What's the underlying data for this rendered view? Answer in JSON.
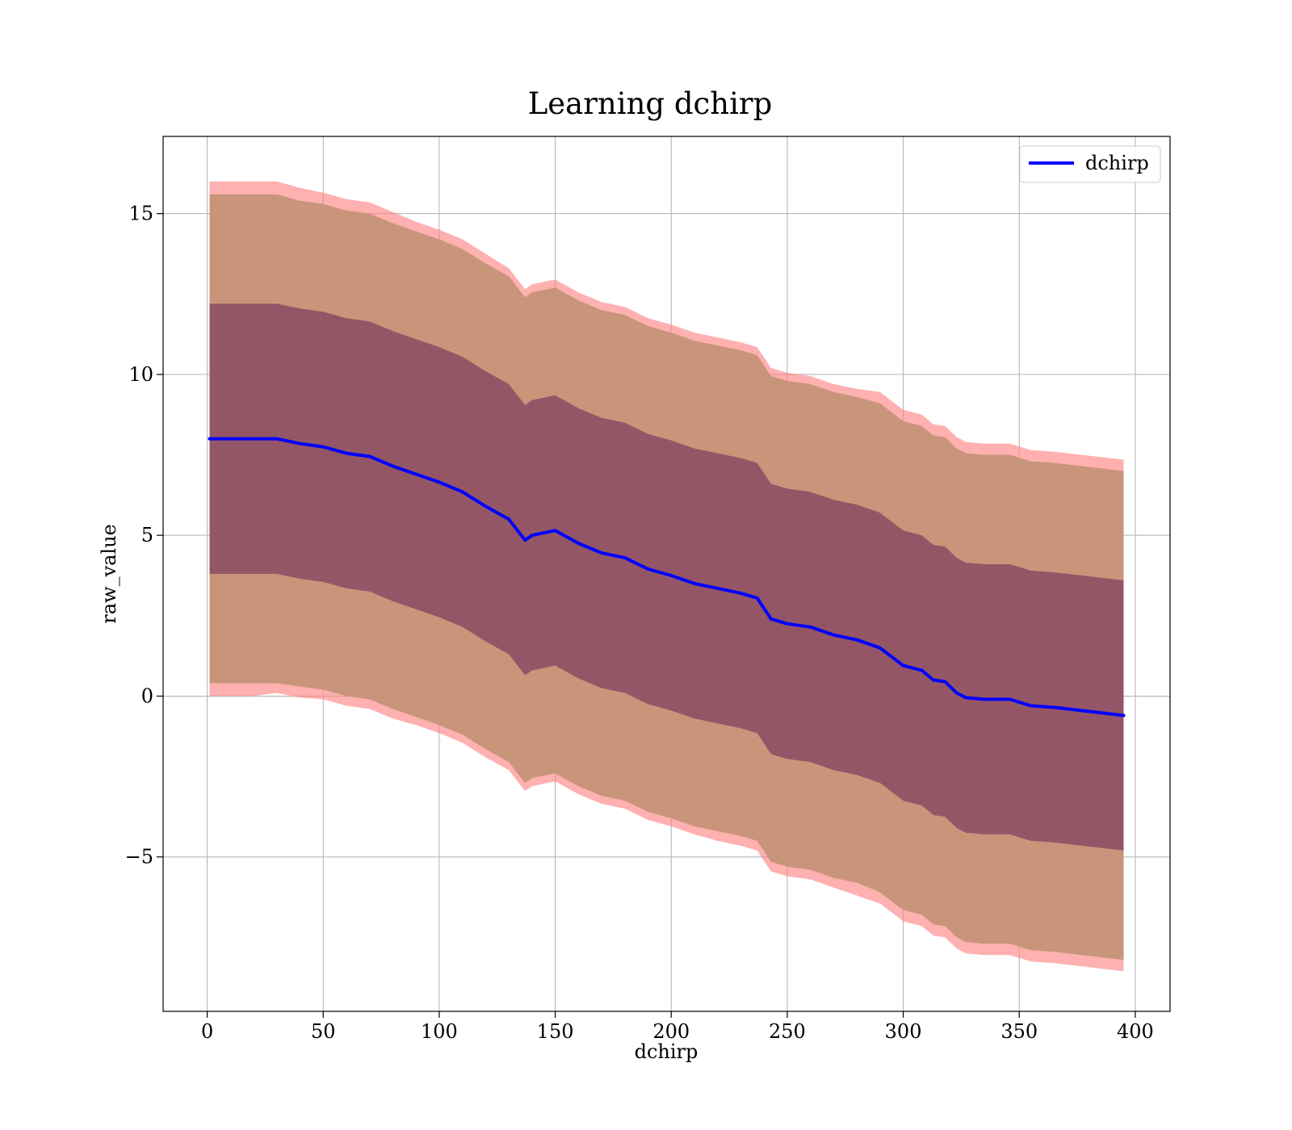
{
  "chart_data": {
    "type": "line",
    "title": "Learning dchirp",
    "xlabel": "dchirp",
    "ylabel": "raw_value",
    "xlim": [
      -19,
      415
    ],
    "ylim": [
      -9.8,
      17.4
    ],
    "grid": true,
    "legend_position": "top-right",
    "x_ticks": [
      0,
      50,
      100,
      150,
      200,
      250,
      300,
      350,
      400
    ],
    "x_tick_labels": [
      "0",
      "50",
      "100",
      "150",
      "200",
      "250",
      "300",
      "350",
      "400"
    ],
    "y_ticks": [
      -5,
      0,
      5,
      10,
      15
    ],
    "y_tick_labels": [
      "−5",
      "0",
      "5",
      "10",
      "15"
    ],
    "colors": {
      "line": "#0000ff",
      "outer_band": "#ff7f7f",
      "inner_band": "#7f3f5f",
      "grid": "#b0b0b0",
      "axes": "#000000"
    },
    "series": [
      {
        "name": "dchirp",
        "x": [
          1,
          10,
          20,
          30,
          40,
          50,
          60,
          70,
          80,
          90,
          100,
          110,
          120,
          130,
          137,
          140,
          150,
          160,
          170,
          180,
          190,
          200,
          210,
          220,
          230,
          237,
          243,
          250,
          260,
          270,
          280,
          290,
          300,
          308,
          313,
          318,
          323,
          327,
          335,
          346,
          355,
          365,
          395
        ],
        "y": [
          8.0,
          8.0,
          8.0,
          8.0,
          7.85,
          7.75,
          7.55,
          7.45,
          7.15,
          6.9,
          6.65,
          6.35,
          5.9,
          5.5,
          4.85,
          5.0,
          5.15,
          4.75,
          4.45,
          4.3,
          3.95,
          3.75,
          3.5,
          3.35,
          3.2,
          3.05,
          2.4,
          2.25,
          2.15,
          1.9,
          1.75,
          1.5,
          0.95,
          0.8,
          0.5,
          0.45,
          0.1,
          -0.05,
          -0.1,
          -0.1,
          -0.3,
          -0.35,
          -0.6
        ]
      }
    ],
    "bands": [
      {
        "role": "outer",
        "lower_offset": [
          -8.0,
          -8.0,
          -8.0,
          -7.9,
          -7.9,
          -7.85,
          -7.85,
          -7.85,
          -7.85,
          -7.8,
          -7.8,
          -7.8,
          -7.8,
          -7.8,
          -7.8,
          -7.8,
          -7.8,
          -7.8,
          -7.8,
          -7.8,
          -7.8,
          -7.8,
          -7.8,
          -7.85,
          -7.85,
          -7.85,
          -7.85,
          -7.85,
          -7.85,
          -7.85,
          -7.95,
          -7.95,
          -7.95,
          -7.95,
          -7.95,
          -7.95,
          -7.95,
          -7.95,
          -7.95,
          -7.95,
          -7.95,
          -7.95,
          -7.95
        ],
        "upper_offset": [
          8.0,
          8.0,
          8.0,
          8.0,
          7.95,
          7.9,
          7.9,
          7.9,
          7.9,
          7.85,
          7.85,
          7.85,
          7.85,
          7.8,
          7.8,
          7.8,
          7.8,
          7.8,
          7.8,
          7.8,
          7.8,
          7.8,
          7.8,
          7.8,
          7.8,
          7.8,
          7.8,
          7.8,
          7.8,
          7.8,
          7.8,
          7.95,
          7.95,
          7.95,
          7.95,
          7.95,
          7.95,
          7.95,
          7.95,
          7.95,
          7.95,
          7.95,
          7.95
        ]
      },
      {
        "role": "middle",
        "lower_offset": [
          -7.6,
          -7.6,
          -7.6,
          -7.6,
          -7.55,
          -7.55,
          -7.55,
          -7.55,
          -7.55,
          -7.55,
          -7.55,
          -7.55,
          -7.55,
          -7.55,
          -7.55,
          -7.55,
          -7.55,
          -7.55,
          -7.55,
          -7.55,
          -7.55,
          -7.55,
          -7.55,
          -7.55,
          -7.55,
          -7.55,
          -7.55,
          -7.55,
          -7.55,
          -7.55,
          -7.55,
          -7.6,
          -7.6,
          -7.6,
          -7.6,
          -7.6,
          -7.6,
          -7.6,
          -7.6,
          -7.6,
          -7.6,
          -7.6,
          -7.6
        ],
        "upper_offset": [
          7.6,
          7.6,
          7.6,
          7.6,
          7.55,
          7.55,
          7.55,
          7.55,
          7.55,
          7.55,
          7.55,
          7.55,
          7.55,
          7.55,
          7.55,
          7.55,
          7.55,
          7.55,
          7.55,
          7.55,
          7.55,
          7.55,
          7.55,
          7.55,
          7.55,
          7.55,
          7.55,
          7.55,
          7.55,
          7.55,
          7.55,
          7.6,
          7.6,
          7.6,
          7.6,
          7.6,
          7.6,
          7.6,
          7.6,
          7.6,
          7.6,
          7.6,
          7.6
        ]
      },
      {
        "role": "inner",
        "lower_offset": [
          -4.2,
          -4.2,
          -4.2,
          -4.2,
          -4.2,
          -4.2,
          -4.2,
          -4.2,
          -4.2,
          -4.2,
          -4.2,
          -4.2,
          -4.2,
          -4.2,
          -4.2,
          -4.2,
          -4.2,
          -4.2,
          -4.2,
          -4.2,
          -4.2,
          -4.2,
          -4.2,
          -4.2,
          -4.2,
          -4.2,
          -4.2,
          -4.2,
          -4.2,
          -4.2,
          -4.2,
          -4.2,
          -4.2,
          -4.2,
          -4.2,
          -4.2,
          -4.2,
          -4.2,
          -4.2,
          -4.2,
          -4.2,
          -4.2,
          -4.2
        ],
        "upper_offset": [
          4.2,
          4.2,
          4.2,
          4.2,
          4.2,
          4.2,
          4.2,
          4.2,
          4.2,
          4.2,
          4.2,
          4.2,
          4.2,
          4.2,
          4.2,
          4.2,
          4.2,
          4.2,
          4.2,
          4.2,
          4.2,
          4.2,
          4.2,
          4.2,
          4.2,
          4.2,
          4.2,
          4.2,
          4.2,
          4.2,
          4.2,
          4.2,
          4.2,
          4.2,
          4.2,
          4.2,
          4.2,
          4.2,
          4.2,
          4.2,
          4.2,
          4.2,
          4.2
        ]
      }
    ],
    "legend": [
      {
        "label": "dchirp",
        "color": "#0000ff"
      }
    ]
  }
}
